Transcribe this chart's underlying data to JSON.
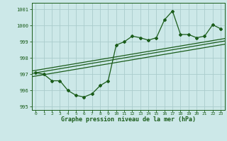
{
  "title": "Graphe pression niveau de la mer (hPa)",
  "bg_color": "#cce8e8",
  "grid_color": "#aacccc",
  "line_color": "#1a5c1a",
  "xlim": [
    -0.5,
    23.5
  ],
  "ylim": [
    994.8,
    1001.4
  ],
  "yticks": [
    995,
    996,
    997,
    998,
    999,
    1000,
    1001
  ],
  "xticks": [
    0,
    1,
    2,
    3,
    4,
    5,
    6,
    7,
    8,
    9,
    10,
    11,
    12,
    13,
    14,
    15,
    16,
    17,
    18,
    19,
    20,
    21,
    22,
    23
  ],
  "data_x": [
    0,
    1,
    2,
    3,
    4,
    5,
    6,
    7,
    8,
    9,
    10,
    11,
    12,
    13,
    14,
    15,
    16,
    17,
    18,
    19,
    20,
    21,
    22,
    23
  ],
  "data_y": [
    997.1,
    997.0,
    996.6,
    996.6,
    996.0,
    995.7,
    995.6,
    995.8,
    996.3,
    996.6,
    998.8,
    999.0,
    999.35,
    999.25,
    999.1,
    999.25,
    1000.35,
    1000.9,
    999.45,
    999.45,
    999.25,
    999.35,
    1000.05,
    999.8
  ],
  "trend_lines": [
    [
      996.85,
      998.85
    ],
    [
      997.05,
      999.05
    ],
    [
      997.2,
      999.2
    ]
  ]
}
